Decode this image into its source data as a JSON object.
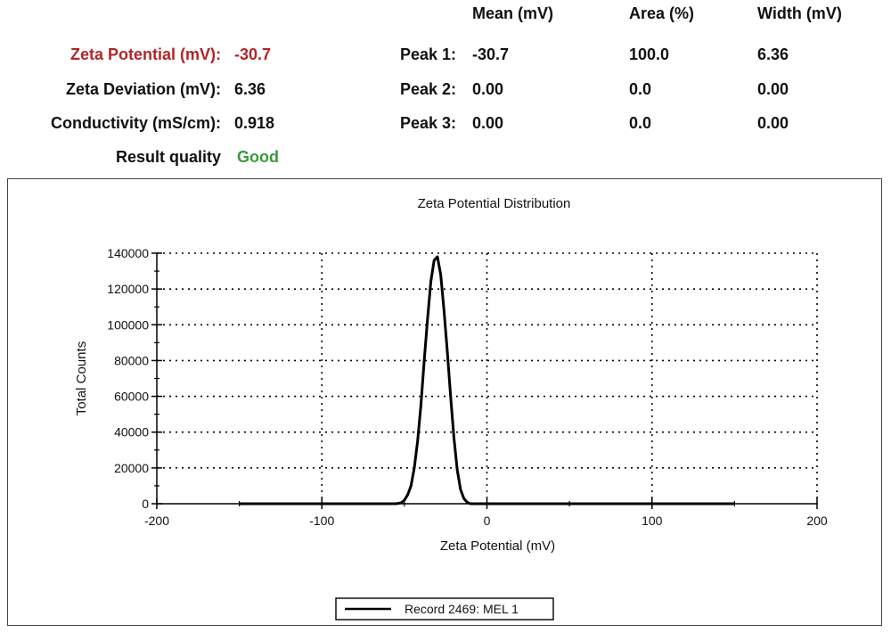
{
  "summary": {
    "zeta_potential": {
      "label": "Zeta Potential (mV):",
      "value": "-30.7",
      "color": "#b1252a"
    },
    "zeta_deviation": {
      "label": "Zeta Deviation (mV):",
      "value": "6.36"
    },
    "conductivity": {
      "label": "Conductivity (mS/cm):",
      "value": "0.918"
    },
    "result_quality": {
      "label": "Result quality",
      "value": "Good",
      "color": "#3a9a3a"
    }
  },
  "peaks": {
    "headers": [
      "Mean (mV)",
      "Area (%)",
      "Width (mV)"
    ],
    "rows": [
      {
        "label": "Peak 1:",
        "mean": "-30.7",
        "area": "100.0",
        "width": "6.36"
      },
      {
        "label": "Peak 2:",
        "mean": "0.00",
        "area": "0.0",
        "width": "0.00"
      },
      {
        "label": "Peak 3:",
        "mean": "0.00",
        "area": "0.0",
        "width": "0.00"
      }
    ]
  },
  "chart_data": {
    "type": "line",
    "title": "Zeta Potential Distribution",
    "xlabel": "Zeta Potential (mV)",
    "ylabel": "Total Counts",
    "xlim": [
      -200,
      200
    ],
    "ylim": [
      0,
      140000
    ],
    "xticks": [
      -200,
      -100,
      0,
      100,
      200
    ],
    "yticks": [
      0,
      20000,
      40000,
      60000,
      80000,
      100000,
      120000,
      140000
    ],
    "grid": true,
    "legend": "bottom-center",
    "series": [
      {
        "name": "Record 2469: MEL 1",
        "color": "#000000",
        "x": [
          -150,
          -60,
          -55,
          -52,
          -50,
          -48,
          -46,
          -44,
          -42,
          -40,
          -38,
          -36,
          -34,
          -32,
          -30,
          -28,
          -26,
          -24,
          -22,
          -20,
          -18,
          -16,
          -14,
          -12,
          -10,
          150
        ],
        "y": [
          0,
          0,
          0,
          500,
          2000,
          5000,
          10000,
          20000,
          35000,
          55000,
          80000,
          103000,
          124000,
          136000,
          138000,
          128000,
          108000,
          85000,
          60000,
          37000,
          19000,
          8000,
          3000,
          800,
          0,
          0
        ]
      }
    ]
  }
}
